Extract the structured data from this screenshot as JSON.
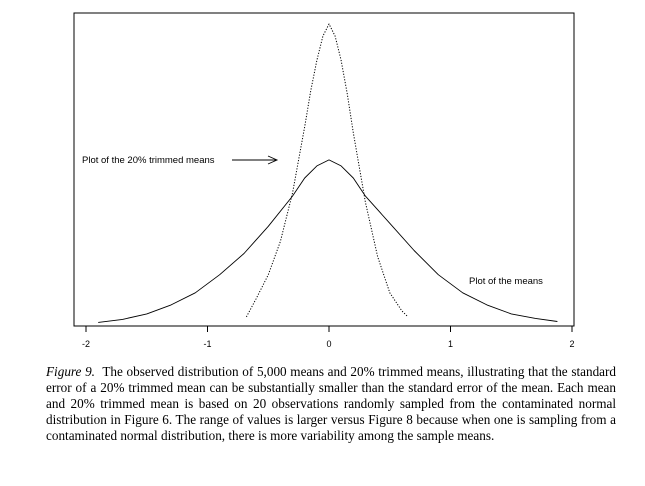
{
  "chart_data": {
    "type": "line",
    "title": "",
    "xlabel": "",
    "ylabel": "",
    "xlim": [
      -2,
      2
    ],
    "ylim": [
      0,
      1.0
    ],
    "xticks": [
      "-2",
      "-1",
      "0",
      "1",
      "2"
    ],
    "grid": false,
    "series": [
      {
        "name": "Plot of the 20% trimmed means",
        "style": "dotted",
        "x": [
          -0.68,
          -0.6,
          -0.5,
          -0.4,
          -0.3,
          -0.2,
          -0.15,
          -0.1,
          -0.05,
          0,
          0.05,
          0.1,
          0.15,
          0.2,
          0.3,
          0.4,
          0.5,
          0.6,
          0.65
        ],
        "y": [
          0.03,
          0.09,
          0.17,
          0.28,
          0.44,
          0.66,
          0.78,
          0.88,
          0.96,
          1.0,
          0.96,
          0.88,
          0.77,
          0.64,
          0.41,
          0.23,
          0.11,
          0.05,
          0.03
        ]
      },
      {
        "name": "Plot of the means",
        "style": "solid",
        "x": [
          -1.9,
          -1.7,
          -1.5,
          -1.3,
          -1.1,
          -0.9,
          -0.7,
          -0.5,
          -0.3,
          -0.2,
          -0.1,
          0,
          0.1,
          0.2,
          0.3,
          0.5,
          0.7,
          0.9,
          1.1,
          1.3,
          1.5,
          1.7,
          1.88
        ],
        "y": [
          0.012,
          0.022,
          0.04,
          0.07,
          0.11,
          0.17,
          0.24,
          0.33,
          0.43,
          0.49,
          0.53,
          0.55,
          0.53,
          0.49,
          0.43,
          0.34,
          0.25,
          0.17,
          0.11,
          0.07,
          0.04,
          0.025,
          0.015
        ]
      }
    ],
    "annotations": [
      {
        "text": "Plot of the 20% trimmed means",
        "points_to": "Plot of the 20% trimmed means"
      },
      {
        "text": "Plot of the means",
        "points_to": "Plot of the means"
      }
    ]
  },
  "caption": {
    "label": "Figure 9.",
    "text": "The observed distribution of 5,000 means and 20% trimmed means, illustrating that the standard error of a 20% trimmed mean can be substantially smaller than the standard error of the mean. Each mean and 20% trimmed mean is based on 20 observations randomly sampled from the contaminated normal distribution in Figure 6. The range of values is larger versus Figure 8 because when one is sampling from a contaminated normal distribution, there is more variability among the sample means."
  }
}
